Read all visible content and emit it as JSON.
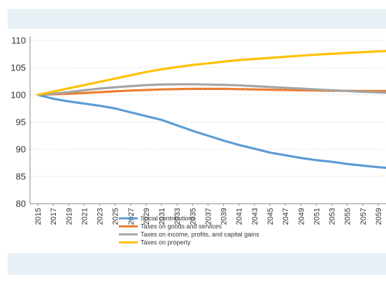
{
  "chart_data": {
    "type": "line",
    "title": "",
    "xlabel": "",
    "ylabel": "",
    "ylim": [
      80,
      110
    ],
    "yticks": [
      80,
      85,
      90,
      95,
      100,
      105,
      110
    ],
    "xlim": [
      2015,
      2060
    ],
    "xticks": [
      2015,
      2017,
      2019,
      2021,
      2023,
      2025,
      2027,
      2029,
      2031,
      2033,
      2035,
      2037,
      2039,
      2041,
      2043,
      2045,
      2047,
      2049,
      2051,
      2053,
      2055,
      2057,
      2059
    ],
    "grid": true,
    "legend_position": "bottom",
    "series": [
      {
        "name": "Social contributions",
        "color": "#5b9bd5",
        "points": [
          [
            2015,
            100
          ],
          [
            2017,
            99.3
          ],
          [
            2019,
            98.8
          ],
          [
            2021,
            98.4
          ],
          [
            2023,
            98.0
          ],
          [
            2025,
            97.5
          ],
          [
            2027,
            96.8
          ],
          [
            2029,
            96.1
          ],
          [
            2031,
            95.4
          ],
          [
            2033,
            94.4
          ],
          [
            2035,
            93.4
          ],
          [
            2037,
            92.5
          ],
          [
            2039,
            91.6
          ],
          [
            2041,
            90.8
          ],
          [
            2043,
            90.1
          ],
          [
            2045,
            89.4
          ],
          [
            2047,
            88.9
          ],
          [
            2049,
            88.4
          ],
          [
            2051,
            88.0
          ],
          [
            2053,
            87.7
          ],
          [
            2055,
            87.3
          ],
          [
            2057,
            87.0
          ],
          [
            2059,
            86.7
          ],
          [
            2060,
            86.6
          ]
        ]
      },
      {
        "name": "Taxes on goods and services",
        "color": "#ed7d31",
        "points": [
          [
            2015,
            100
          ],
          [
            2017,
            100.1
          ],
          [
            2019,
            100.2
          ],
          [
            2021,
            100.35
          ],
          [
            2023,
            100.5
          ],
          [
            2025,
            100.65
          ],
          [
            2027,
            100.8
          ],
          [
            2029,
            100.9
          ],
          [
            2031,
            101.0
          ],
          [
            2033,
            101.05
          ],
          [
            2035,
            101.1
          ],
          [
            2037,
            101.1
          ],
          [
            2039,
            101.1
          ],
          [
            2041,
            101.05
          ],
          [
            2043,
            101.0
          ],
          [
            2045,
            100.95
          ],
          [
            2047,
            100.9
          ],
          [
            2049,
            100.85
          ],
          [
            2051,
            100.8
          ],
          [
            2053,
            100.75
          ],
          [
            2055,
            100.75
          ],
          [
            2057,
            100.7
          ],
          [
            2059,
            100.7
          ],
          [
            2060,
            100.7
          ]
        ]
      },
      {
        "name": "Taxes on income, profits, and capital gains",
        "color": "#a5a5a5",
        "points": [
          [
            2015,
            100
          ],
          [
            2017,
            100.2
          ],
          [
            2019,
            100.5
          ],
          [
            2021,
            100.85
          ],
          [
            2023,
            101.15
          ],
          [
            2025,
            101.4
          ],
          [
            2027,
            101.6
          ],
          [
            2029,
            101.8
          ],
          [
            2031,
            101.9
          ],
          [
            2033,
            101.95
          ],
          [
            2035,
            101.95
          ],
          [
            2037,
            101.9
          ],
          [
            2039,
            101.85
          ],
          [
            2041,
            101.75
          ],
          [
            2043,
            101.6
          ],
          [
            2045,
            101.45
          ],
          [
            2047,
            101.3
          ],
          [
            2049,
            101.15
          ],
          [
            2051,
            101.0
          ],
          [
            2053,
            100.85
          ],
          [
            2055,
            100.7
          ],
          [
            2057,
            100.55
          ],
          [
            2059,
            100.45
          ],
          [
            2060,
            100.4
          ]
        ]
      },
      {
        "name": "Taxes on property",
        "color": "#ffc000",
        "points": [
          [
            2015,
            100
          ],
          [
            2017,
            100.6
          ],
          [
            2019,
            101.2
          ],
          [
            2021,
            101.8
          ],
          [
            2023,
            102.4
          ],
          [
            2025,
            103.0
          ],
          [
            2027,
            103.6
          ],
          [
            2029,
            104.2
          ],
          [
            2031,
            104.7
          ],
          [
            2033,
            105.1
          ],
          [
            2035,
            105.5
          ],
          [
            2037,
            105.8
          ],
          [
            2039,
            106.1
          ],
          [
            2041,
            106.4
          ],
          [
            2043,
            106.6
          ],
          [
            2045,
            106.8
          ],
          [
            2047,
            107.0
          ],
          [
            2049,
            107.2
          ],
          [
            2051,
            107.4
          ],
          [
            2053,
            107.55
          ],
          [
            2055,
            107.7
          ],
          [
            2057,
            107.85
          ],
          [
            2059,
            108.0
          ],
          [
            2060,
            108.05
          ]
        ]
      }
    ]
  }
}
